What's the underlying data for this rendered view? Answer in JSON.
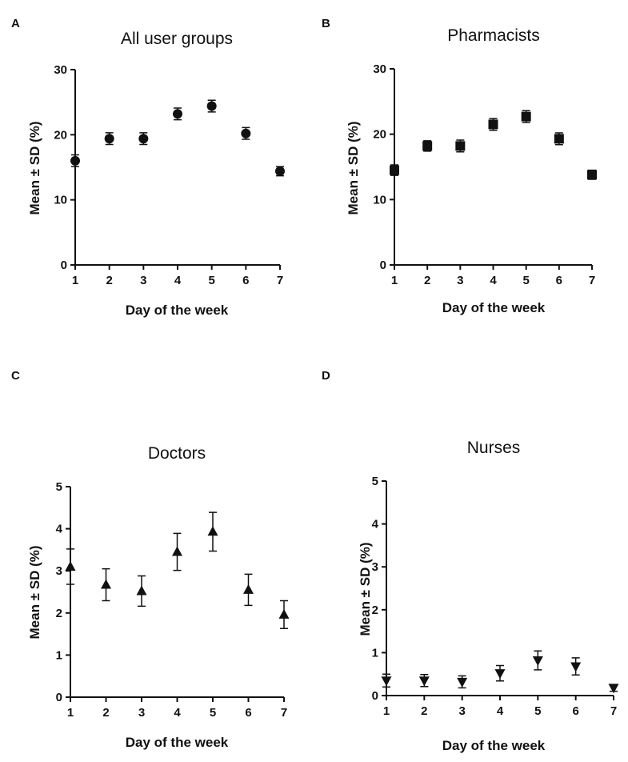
{
  "chart_data": [
    {
      "panel": "A",
      "type": "scatter",
      "title": "All user groups",
      "xlabel": "Day of the week",
      "ylabel": "Mean ± SD  (%)",
      "x": [
        1,
        2,
        3,
        4,
        5,
        6,
        7
      ],
      "series": [
        {
          "name": "All user groups",
          "marker": "circle",
          "values": [
            16.0,
            19.4,
            19.4,
            23.2,
            24.4,
            20.2,
            14.4
          ],
          "error": [
            0.9,
            0.9,
            0.9,
            0.9,
            0.9,
            0.9,
            0.7
          ]
        }
      ],
      "ylim": [
        0,
        30
      ],
      "yticks": [
        0,
        10,
        20,
        30
      ],
      "xticks": [
        1,
        2,
        3,
        4,
        5,
        6,
        7
      ]
    },
    {
      "panel": "B",
      "type": "scatter",
      "title": "Pharmacists",
      "xlabel": "Day of the week",
      "ylabel": "Mean ± SD  (%)",
      "x": [
        1,
        2,
        3,
        4,
        5,
        6,
        7
      ],
      "series": [
        {
          "name": "Pharmacists",
          "marker": "square",
          "values": [
            14.5,
            18.2,
            18.2,
            21.5,
            22.7,
            19.3,
            13.8
          ],
          "error": [
            0.8,
            0.8,
            0.9,
            0.9,
            0.9,
            0.9,
            0.7
          ]
        }
      ],
      "ylim": [
        0,
        30
      ],
      "yticks": [
        0,
        10,
        20,
        30
      ],
      "xticks": [
        1,
        2,
        3,
        4,
        5,
        6,
        7
      ]
    },
    {
      "panel": "C",
      "type": "scatter",
      "title": "Doctors",
      "xlabel": "Day of the week",
      "ylabel": "Mean ± SD  (%)",
      "x": [
        1,
        2,
        3,
        4,
        5,
        6,
        7
      ],
      "series": [
        {
          "name": "Doctors",
          "marker": "triangle-up",
          "values": [
            3.1,
            2.67,
            2.52,
            3.45,
            3.93,
            2.55,
            1.96
          ],
          "error": [
            0.42,
            0.38,
            0.36,
            0.44,
            0.46,
            0.37,
            0.33
          ]
        }
      ],
      "ylim": [
        0,
        5
      ],
      "yticks": [
        0,
        1,
        2,
        3,
        4,
        5
      ],
      "xticks": [
        1,
        2,
        3,
        4,
        5,
        6,
        7
      ]
    },
    {
      "panel": "D",
      "type": "scatter",
      "title": "Nurses",
      "xlabel": "Day of the week",
      "ylabel": "Mean ± SD  (%)",
      "x": [
        1,
        2,
        3,
        4,
        5,
        6,
        7
      ],
      "series": [
        {
          "name": "Nurses",
          "marker": "triangle-down",
          "values": [
            0.35,
            0.35,
            0.32,
            0.52,
            0.82,
            0.68,
            0.18
          ],
          "error": [
            0.15,
            0.14,
            0.14,
            0.18,
            0.22,
            0.2,
            0.08
          ]
        }
      ],
      "ylim": [
        0,
        5
      ],
      "yticks": [
        0,
        1,
        2,
        3,
        4,
        5
      ],
      "xticks": [
        1,
        2,
        3,
        4,
        5,
        6,
        7
      ]
    }
  ]
}
